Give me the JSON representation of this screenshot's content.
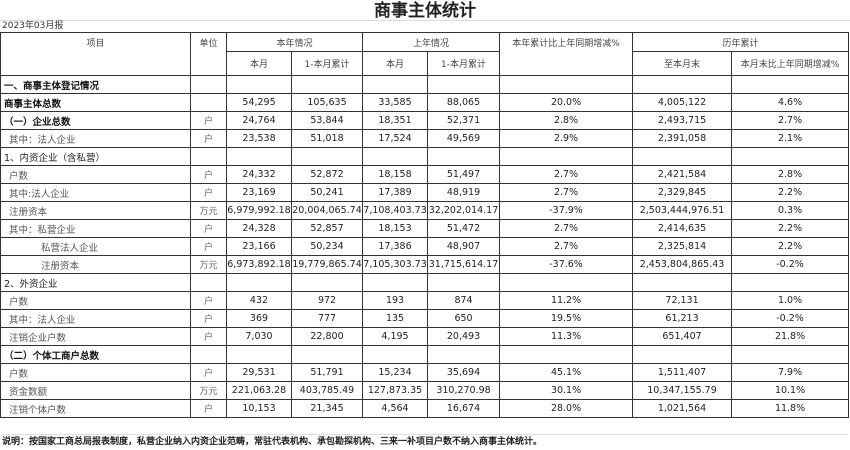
{
  "title": "商事主体统计",
  "report_date": "2023年03月报",
  "headers": {
    "item": "项目",
    "unit": "单位",
    "this_year": "本年情况",
    "last_year": "上年情况",
    "yoy": "本年累计比上年同期增减%",
    "history": "历年累计",
    "month": "本月",
    "cumulative": "1-本月累计",
    "month_ly": "本月",
    "cumulative_ly": "1-本月累计",
    "to_month_end": "至本月末",
    "month_end_yoy": "本月末比上年同期增减%"
  },
  "rows": [
    {
      "item": "一、商事主体登记情况",
      "unit": "",
      "values": [
        "",
        "",
        "",
        "",
        "",
        "",
        ""
      ],
      "style": "bold"
    },
    {
      "item": "商事主体总数",
      "unit": "",
      "values": [
        "54,295",
        "105,635",
        "33,585",
        "88,065",
        "20.0%",
        "4,005,122",
        "4.6%"
      ],
      "style": "bold"
    },
    {
      "item": "（一）企业总数",
      "unit": "户",
      "values": [
        "24,764",
        "53,844",
        "18,351",
        "52,371",
        "2.8%",
        "2,493,715",
        "2.7%"
      ],
      "style": "bold"
    },
    {
      "item": "其中：法人企业",
      "unit": "户",
      "values": [
        "23,538",
        "51,018",
        "17,524",
        "49,569",
        "2.9%",
        "2,391,058",
        "2.1%"
      ],
      "style": "ind1"
    },
    {
      "item": "1、内资企业（含私营）",
      "unit": "",
      "values": [
        "",
        "",
        "",
        "",
        "",
        "",
        ""
      ],
      "style": "section"
    },
    {
      "item": "户数",
      "unit": "户",
      "values": [
        "24,332",
        "52,872",
        "18,158",
        "51,497",
        "2.7%",
        "2,421,584",
        "2.8%"
      ],
      "style": "ind1"
    },
    {
      "item": "其中:法人企业",
      "unit": "户",
      "values": [
        "23,169",
        "50,241",
        "17,389",
        "48,919",
        "2.7%",
        "2,329,845",
        "2.2%"
      ],
      "style": "ind1"
    },
    {
      "item": "注册资本",
      "unit": "万元",
      "values": [
        "6,979,992.18",
        "20,004,065.74",
        "7,108,403.73",
        "32,202,014.17",
        "-37.9%",
        "2,503,444,976.51",
        "0.3%"
      ],
      "style": "ind1"
    },
    {
      "item": "其中：私营企业",
      "unit": "户",
      "values": [
        "24,328",
        "52,857",
        "18,153",
        "51,472",
        "2.7%",
        "2,414,635",
        "2.2%"
      ],
      "style": "ind1"
    },
    {
      "item": "私营法人企业",
      "unit": "户",
      "values": [
        "23,166",
        "50,234",
        "17,386",
        "48,907",
        "2.7%",
        "2,325,814",
        "2.2%"
      ],
      "style": "ind2"
    },
    {
      "item": "注册资本",
      "unit": "万元",
      "values": [
        "6,973,892.18",
        "19,779,865.74",
        "7,105,303.73",
        "31,715,614.17",
        "-37.6%",
        "2,453,804,865.43",
        "-0.2%"
      ],
      "style": "ind2"
    },
    {
      "item": "2、外资企业",
      "unit": "",
      "values": [
        "",
        "",
        "",
        "",
        "",
        "",
        ""
      ],
      "style": "section"
    },
    {
      "item": "户数",
      "unit": "户",
      "values": [
        "432",
        "972",
        "193",
        "874",
        "11.2%",
        "72,131",
        "1.0%"
      ],
      "style": "ind1"
    },
    {
      "item": "其中：法人企业",
      "unit": "户",
      "values": [
        "369",
        "777",
        "135",
        "650",
        "19.5%",
        "61,213",
        "-0.2%"
      ],
      "style": "ind1"
    },
    {
      "item": "注销企业户数",
      "unit": "户",
      "values": [
        "7,030",
        "22,800",
        "4,195",
        "20,493",
        "11.3%",
        "651,407",
        "21.8%"
      ],
      "style": "ind1"
    },
    {
      "item": "（二）个体工商户总数",
      "unit": "",
      "values": [
        "",
        "",
        "",
        "",
        "",
        "",
        ""
      ],
      "style": "bold"
    },
    {
      "item": "户数",
      "unit": "户",
      "values": [
        "29,531",
        "51,791",
        "15,234",
        "35,694",
        "45.1%",
        "1,511,407",
        "7.9%"
      ],
      "style": "ind1"
    },
    {
      "item": "资金数额",
      "unit": "万元",
      "values": [
        "221,063.28",
        "403,785.49",
        "127,873.35",
        "310,270.98",
        "30.1%",
        "10,347,155.79",
        "10.1%"
      ],
      "style": "ind1"
    },
    {
      "item": "注销个体户数",
      "unit": "户",
      "values": [
        "10,153",
        "21,345",
        "4,564",
        "16,674",
        "28.0%",
        "1,021,564",
        "11.8%"
      ],
      "style": "ind1"
    }
  ],
  "note": "说明：按国家工商总局报表制度，私营企业纳入内资企业范畴，常驻代表机构、承包勘探机构、三来一补项目户数不纳入商事主体统计。"
}
